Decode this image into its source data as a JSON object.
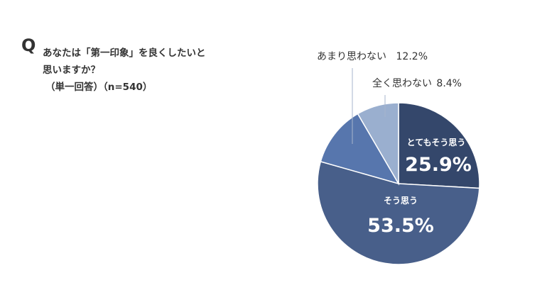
{
  "question": {
    "mark": "Q",
    "line1": "あなたは「第一印象」を良くしたいと",
    "line2": "思いますか？",
    "line3": "（単一回答）（n=540）"
  },
  "chart_data": {
    "type": "pie",
    "start_angle_deg": 0,
    "direction": "clockwise",
    "slices": [
      {
        "label": "とてもそう思う",
        "value": 25.9,
        "value_label": "25.9%",
        "color": "#34476b",
        "label_position": "inside"
      },
      {
        "label": "そう思う",
        "value": 53.5,
        "value_label": "53.5%",
        "color": "#485f8a",
        "label_position": "inside"
      },
      {
        "label": "あまり思わない",
        "value": 12.2,
        "value_label": "12.2%",
        "color": "#5776ad",
        "label_position": "outside"
      },
      {
        "label": "全く思わない",
        "value": 8.4,
        "value_label": "8.4%",
        "color": "#9aafcf",
        "label_position": "outside"
      }
    ],
    "slice_border_color": "#ffffff",
    "leader_line_color": "#a7b6cc"
  }
}
